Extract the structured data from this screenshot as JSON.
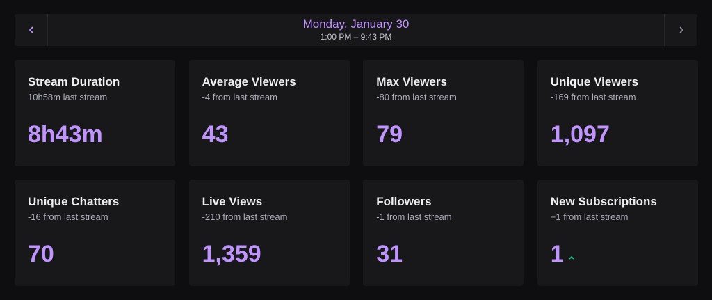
{
  "header": {
    "date": "Monday, January 30",
    "time_range": "1:00 PM – 9:43 PM",
    "prev_icon": "chevron-left-icon",
    "next_icon": "chevron-right-icon"
  },
  "colors": {
    "accent": "#bf94ff",
    "trend_up": "#00c88c",
    "card_bg": "#18181b",
    "page_bg": "#0e0e10"
  },
  "stats": [
    {
      "title": "Stream Duration",
      "sub": "10h58m last stream",
      "value": "8h43m"
    },
    {
      "title": "Average Viewers",
      "sub": "-4 from last stream",
      "value": "43"
    },
    {
      "title": "Max Viewers",
      "sub": "-80 from last stream",
      "value": "79"
    },
    {
      "title": "Unique Viewers",
      "sub": "-169 from last stream",
      "value": "1,097"
    },
    {
      "title": "Unique Chatters",
      "sub": "-16 from last stream",
      "value": "70"
    },
    {
      "title": "Live Views",
      "sub": "-210 from last stream",
      "value": "1,359"
    },
    {
      "title": "Followers",
      "sub": "-1 from last stream",
      "value": "31"
    },
    {
      "title": "New Subscriptions",
      "sub": "+1 from last stream",
      "value": "1",
      "trend": "up",
      "trend_icon": "trend-up-caret-icon"
    }
  ]
}
